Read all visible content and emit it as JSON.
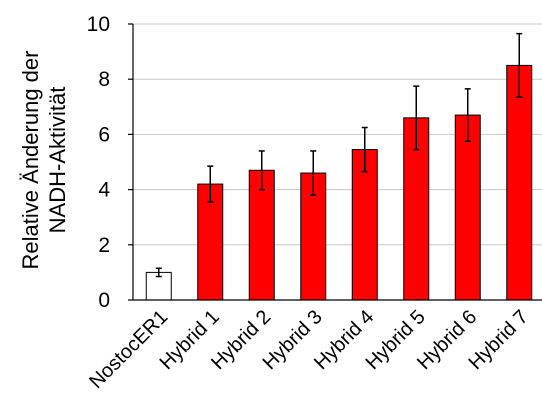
{
  "chart_data": {
    "type": "bar",
    "categories": [
      "NostocER1",
      "Hybrid 1",
      "Hybrid 2",
      "Hybrid 3",
      "Hybrid 4",
      "Hybrid 5",
      "Hybrid 6",
      "Hybrid 7"
    ],
    "values": [
      1.0,
      4.2,
      4.7,
      4.6,
      5.45,
      6.6,
      6.7,
      8.5
    ],
    "errors": [
      0.15,
      0.65,
      0.7,
      0.8,
      0.8,
      1.15,
      0.95,
      1.15
    ],
    "ylabel_lines": [
      "Relative Änderung der",
      "NADH-Aktivität"
    ],
    "ylim": [
      0,
      10
    ],
    "yticks": [
      0,
      2,
      4,
      6,
      8,
      10
    ],
    "grid": true,
    "colors": {
      "reference_bar": "#ffffff",
      "hybrid_bar": "#ff0000",
      "gridline": "#c8c8c8",
      "axis": "#000000"
    }
  }
}
